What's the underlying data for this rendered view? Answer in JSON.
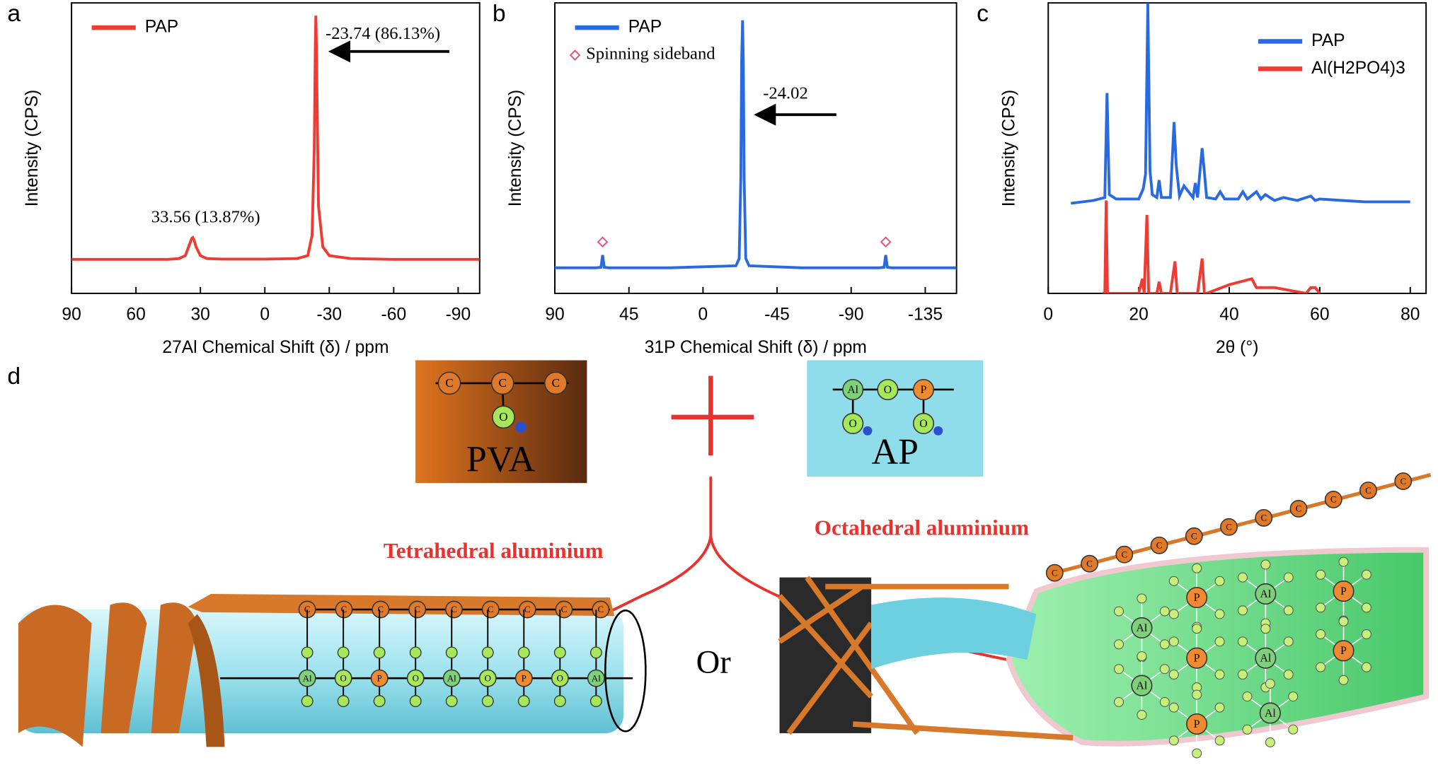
{
  "chart_data": [
    {
      "type": "line",
      "panel": "a",
      "xlabel": "27Al Chemical Shift (δ) / ppm",
      "ylabel": "Intensity (CPS)",
      "xlim": [
        90,
        -100
      ],
      "ylim": [
        0,
        100
      ],
      "xticks": [
        90,
        60,
        30,
        0,
        -30,
        -60,
        -90
      ],
      "legend": "upper left",
      "series": [
        {
          "name": "PAP",
          "color": "#ee3b34",
          "x": [
            90,
            60,
            45,
            40,
            37,
            35,
            34,
            33.56,
            33,
            32,
            30,
            27,
            20,
            0,
            -15,
            -20,
            -22,
            -23,
            -23.5,
            -23.74,
            -24,
            -24.5,
            -25,
            -27,
            -30,
            -40,
            -60,
            -100
          ],
          "values": [
            11.7,
            11.7,
            11.7,
            12,
            13,
            17,
            19,
            19.2,
            18.5,
            16,
            13,
            12,
            11.8,
            11.8,
            12,
            13,
            20,
            50,
            85,
            95.6,
            85,
            55,
            30,
            16,
            13,
            12,
            11.7,
            11.7
          ]
        }
      ],
      "annotations": [
        "-23.74 (86.13%)",
        "33.56 (13.87%)"
      ]
    },
    {
      "type": "line",
      "panel": "b",
      "xlabel": "31P Chemical Shift (δ) / ppm",
      "ylabel": "Intensity (CPS)",
      "xlim": [
        90,
        -154
      ],
      "ylim": [
        0,
        100
      ],
      "xticks": [
        90,
        45,
        0,
        -45,
        -90,
        -135
      ],
      "legend": "upper left",
      "series": [
        {
          "name": "PAP",
          "color": "#2a6ae0",
          "x": [
            90,
            65,
            62,
            61,
            60,
            57,
            20,
            -20,
            -22,
            -23,
            -23.5,
            -24.02,
            -24.5,
            -25,
            -26,
            -28,
            -60,
            -107,
            -110,
            -111,
            -112,
            -115,
            -154
          ],
          "values": [
            8.8,
            8.8,
            9,
            13.2,
            9,
            8.8,
            8.8,
            9.5,
            12,
            40,
            80,
            94,
            80,
            40,
            12,
            9.5,
            8.8,
            8.8,
            9,
            13.2,
            9,
            8.8,
            8.8
          ]
        }
      ],
      "markers": {
        "name": "Spinning sideband",
        "color": "#e0557a",
        "x": [
          61,
          -111
        ],
        "values": [
          17.7,
          17.7
        ]
      },
      "annotations": [
        "-24.02"
      ]
    },
    {
      "type": "line",
      "panel": "c",
      "xlabel": "2θ (°)",
      "ylabel": "Intensity (CPS)",
      "xlim": [
        0,
        83.5
      ],
      "ylim": [
        0,
        100
      ],
      "xticks": [
        0,
        20,
        40,
        60,
        80
      ],
      "legend": "upper right",
      "series": [
        {
          "name": "PAP",
          "color": "#2a6ae0",
          "x": [
            5,
            10,
            12.5,
            13,
            13.5,
            15,
            20,
            21,
            21.5,
            22,
            22.5,
            23,
            24,
            24.5,
            25,
            27,
            27.8,
            28.3,
            29,
            30,
            32,
            32.5,
            33,
            34,
            34.5,
            35,
            37,
            38,
            39,
            42,
            43,
            44,
            46,
            47,
            48,
            50,
            52,
            55,
            58,
            59,
            60,
            65,
            70,
            75,
            80
          ],
          "values": [
            31,
            32,
            33,
            69,
            34,
            32.5,
            32.5,
            36,
            41,
            100,
            42,
            34,
            33,
            39,
            33,
            33,
            59,
            44,
            33.5,
            37,
            33,
            38,
            33,
            50,
            42,
            33,
            32.5,
            35,
            32.5,
            32.5,
            35,
            32.5,
            35,
            32.5,
            34,
            32,
            33,
            32,
            33.5,
            32,
            32.5,
            32,
            31.5,
            31.5,
            31.5
          ]
        },
        {
          "name": "Al(H2PO4)3",
          "color": "#ee3b34",
          "x": [
            12,
            12.5,
            12.8,
            13.1,
            13.5,
            20,
            20.8,
            21.2,
            21.8,
            22.2,
            22.6,
            24,
            24.5,
            25,
            27,
            28,
            28.5,
            29,
            33,
            34,
            34.5,
            35,
            40,
            45,
            46,
            50,
            57,
            58,
            59,
            60
          ],
          "values": [
            0,
            0,
            32,
            0,
            0,
            0,
            5,
            0,
            27,
            0,
            0,
            0,
            4,
            0,
            0,
            11,
            0,
            0,
            0,
            12,
            0,
            0,
            3,
            5,
            2,
            2,
            0,
            2,
            2,
            0
          ]
        }
      ]
    }
  ],
  "diagram": {
    "panel": "d",
    "pva": {
      "label": "PVA",
      "atoms": [
        "C",
        "C",
        "C",
        "O"
      ]
    },
    "ap": {
      "label": "AP",
      "atoms": [
        "Al",
        "O",
        "P",
        "O",
        "O"
      ]
    },
    "tetrahedral": {
      "title": "Tetrahedral aluminium",
      "backbone": [
        "C",
        "C",
        "C",
        "C",
        "C",
        "C",
        "C",
        "C",
        "C"
      ],
      "atoms": [
        "Al",
        "O",
        "P",
        "O",
        "Al",
        "O",
        "P",
        "O",
        "Al"
      ]
    },
    "separator": "Or",
    "octahedral": {
      "title": "Octahedral aluminium",
      "backbone": [
        "C",
        "C",
        "C",
        "C",
        "C",
        "C",
        "C",
        "C",
        "C",
        "C",
        "C"
      ],
      "atoms": [
        "Al",
        "P",
        "Al",
        "P",
        "Al",
        "P",
        "Al",
        "P",
        "Al",
        "P"
      ]
    }
  }
}
